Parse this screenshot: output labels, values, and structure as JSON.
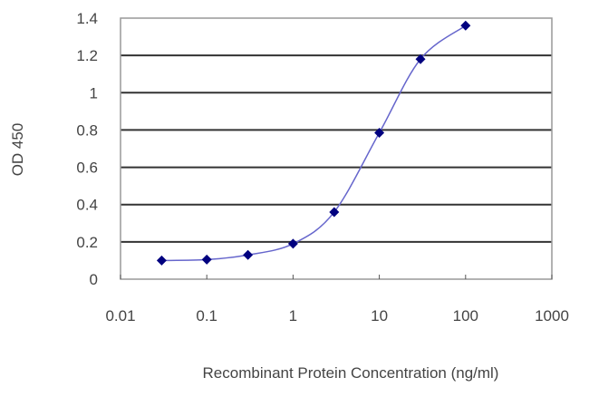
{
  "chart_data": {
    "type": "line",
    "title": "",
    "xlabel": "Recombinant Protein Concentration (ng/ml)",
    "ylabel": "OD 450",
    "x_scale": "log",
    "xlim": [
      0.01,
      1000
    ],
    "ylim": [
      0,
      1.4
    ],
    "x_ticks": [
      0.01,
      0.1,
      1,
      10,
      100,
      1000
    ],
    "x_tick_labels": [
      "0.01",
      "0.1",
      "1",
      "10",
      "100",
      "1000"
    ],
    "y_ticks": [
      0,
      0.2,
      0.4,
      0.6,
      0.8,
      1,
      1.2,
      1.4
    ],
    "y_tick_labels": [
      "0",
      "0.2",
      "0.4",
      "0.6",
      "0.8",
      "1",
      "1.2",
      "1.4"
    ],
    "grid": "horizontal",
    "marker": "diamond",
    "colors": {
      "series": "#00007f",
      "line": "#6666cc",
      "grid": "#333333",
      "frame": "#999999"
    },
    "series": [
      {
        "x": [
          0.03,
          0.1,
          0.3,
          1,
          3,
          10,
          30,
          100
        ],
        "y": [
          0.1,
          0.105,
          0.13,
          0.19,
          0.36,
          0.785,
          1.18,
          1.36
        ]
      }
    ]
  }
}
